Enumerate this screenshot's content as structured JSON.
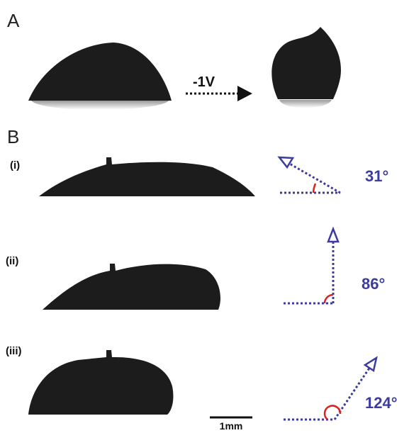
{
  "panel_a": {
    "label": "A",
    "arrow_label": "-1V"
  },
  "panel_b": {
    "label": "B",
    "rows": [
      {
        "label": "(i)",
        "angle": "31°"
      },
      {
        "label": "(ii)",
        "angle": "86°"
      },
      {
        "label": "(iii)",
        "angle": "124°"
      }
    ]
  },
  "scale_bar": "1mm"
}
